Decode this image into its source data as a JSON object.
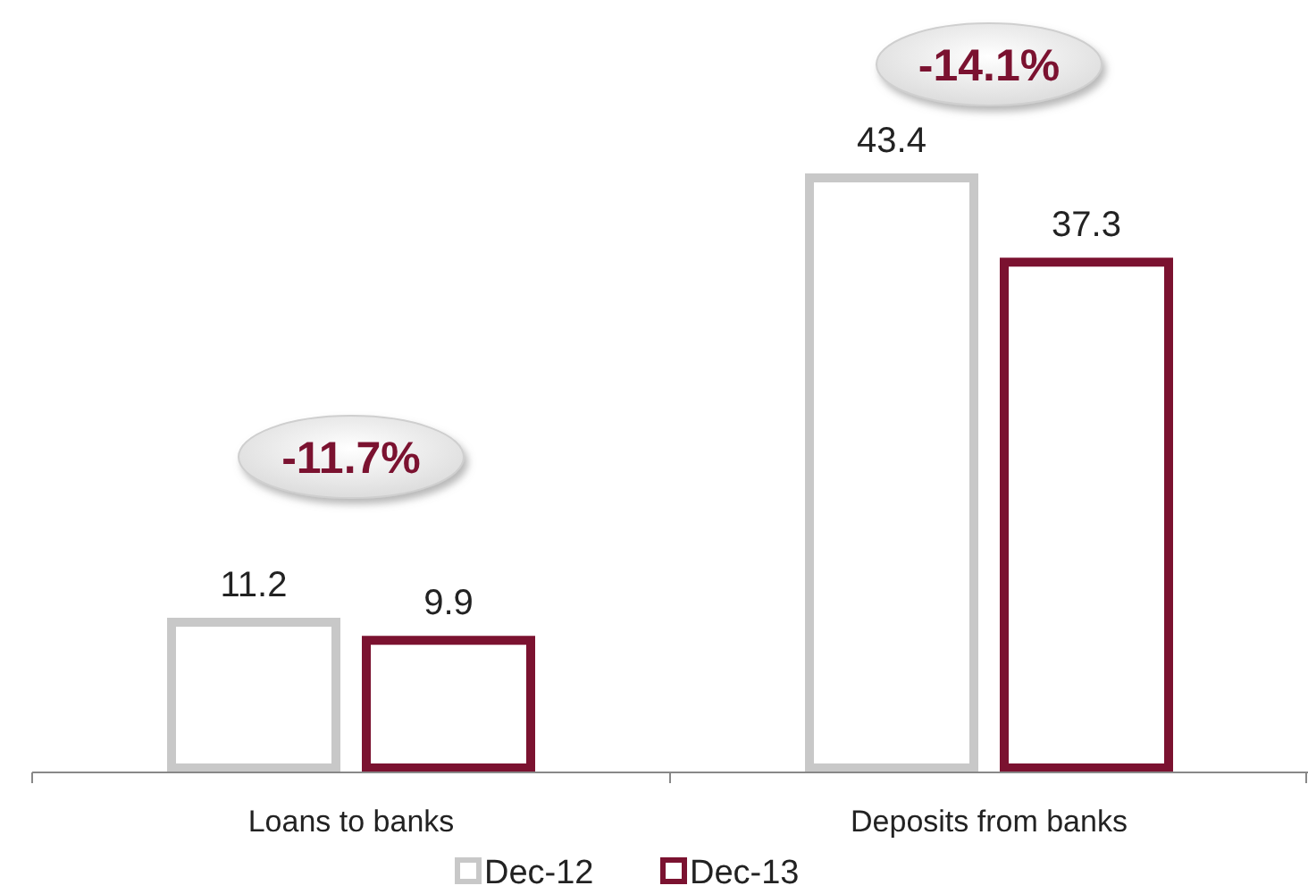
{
  "chart_data": {
    "type": "bar",
    "categories": [
      "Loans to banks",
      "Deposits from banks"
    ],
    "series": [
      {
        "name": "Dec-12",
        "color": "#c8c8c8",
        "values": [
          11.2,
          43.4
        ]
      },
      {
        "name": "Dec-13",
        "color": "#7b1230",
        "values": [
          9.9,
          37.3
        ]
      }
    ],
    "data_labels": true,
    "legend": "bottom",
    "annotations": [
      "-11.7%",
      "-14.1%"
    ]
  }
}
